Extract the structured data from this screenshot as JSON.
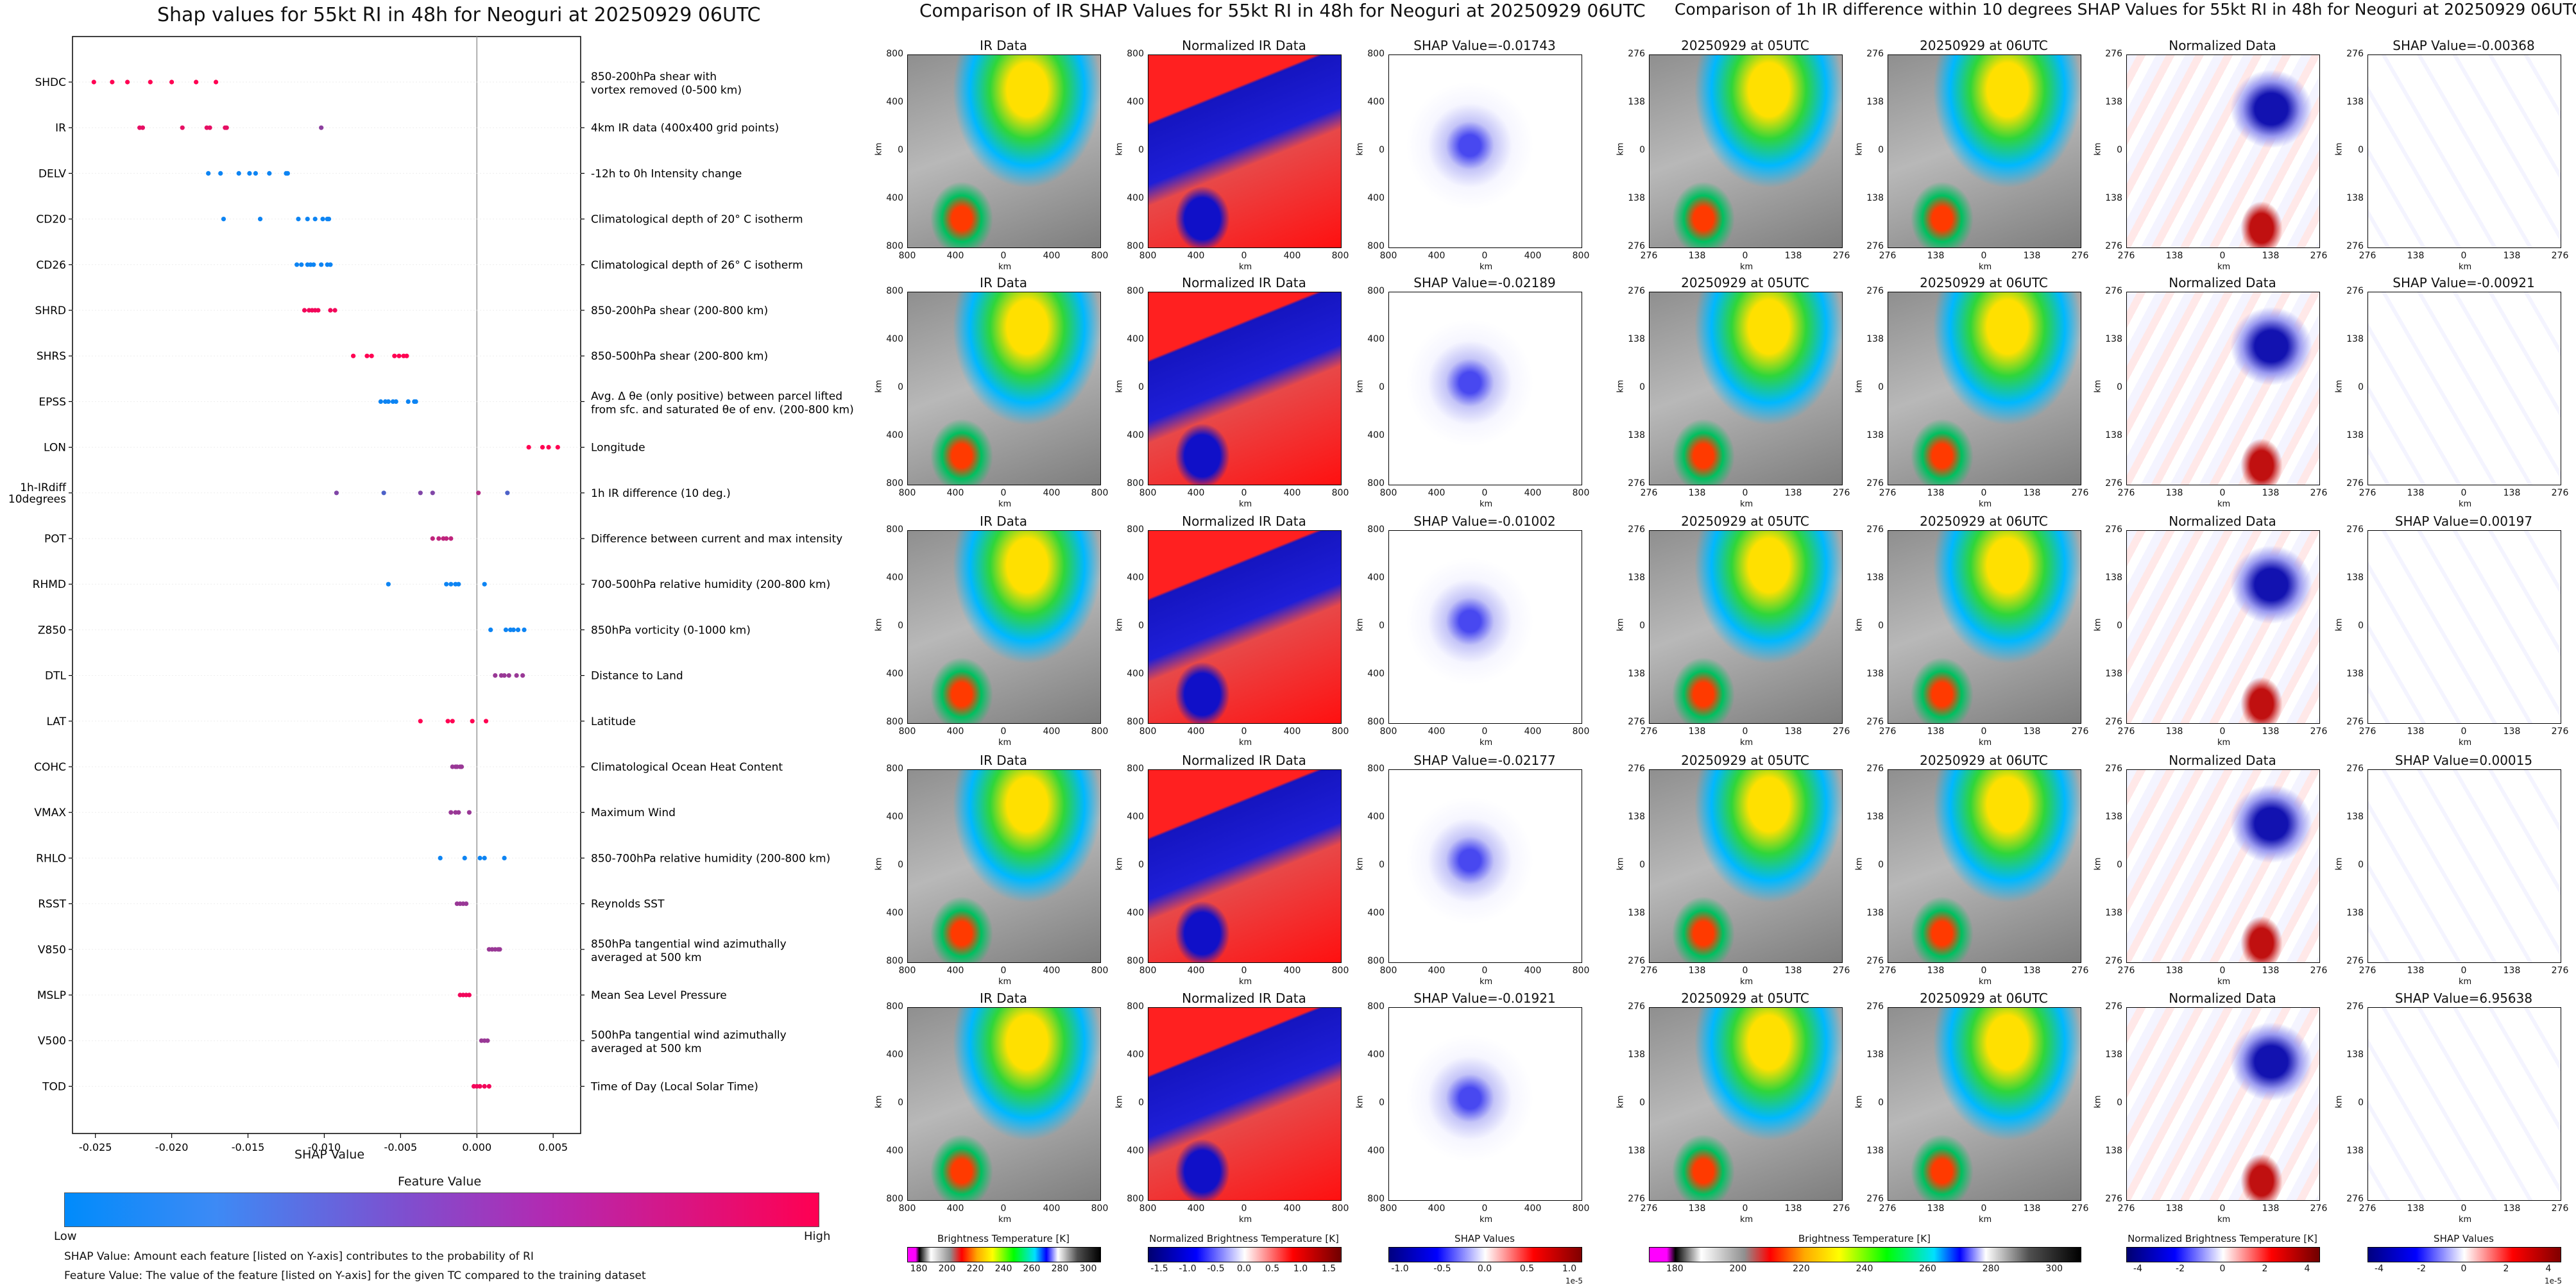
{
  "left_chart": {
    "title": "Shap values for 55kt RI in 48h for Neoguri at 20250929 06UTC",
    "xlabel": "SHAP Value",
    "colorbar_title": "Feature Value",
    "colorbar_low": "Low",
    "colorbar_high": "High",
    "footnote_1": "SHAP Value: Amount each feature [listed on Y-axis] contributes to the probability of RI",
    "footnote_2": "Feature Value: The value of the feature [listed on Y-axis] for the given TC compared to the training dataset",
    "features": [
      {
        "name": "SHDC",
        "desc": "850-200hPa shear with\nvortex removed (0-500 km)"
      },
      {
        "name": "IR",
        "desc": "4km IR data (400x400 grid points)"
      },
      {
        "name": "DELV",
        "desc": "-12h to 0h Intensity change"
      },
      {
        "name": "CD20",
        "desc": "Climatological depth of 20° C isotherm"
      },
      {
        "name": "CD26",
        "desc": "Climatological depth of 26° C isotherm"
      },
      {
        "name": "SHRD",
        "desc": "850-200hPa shear (200-800 km)"
      },
      {
        "name": "SHRS",
        "desc": "850-500hPa shear (200-800 km)"
      },
      {
        "name": "EPSS",
        "desc": "Avg. Δ θe (only positive) between parcel lifted\nfrom sfc. and saturated θe of env. (200-800 km)"
      },
      {
        "name": "LON",
        "desc": "Longitude"
      },
      {
        "name": "1h-IRdiff\n10degrees",
        "desc": "1h IR difference (10 deg.)"
      },
      {
        "name": "POT",
        "desc": "Difference between current and max intensity"
      },
      {
        "name": "RHMD",
        "desc": "700-500hPa relative humidity (200-800 km)"
      },
      {
        "name": "Z850",
        "desc": "850hPa vorticity (0-1000 km)"
      },
      {
        "name": "DTL",
        "desc": "Distance to Land"
      },
      {
        "name": "LAT",
        "desc": "Latitude"
      },
      {
        "name": "COHC",
        "desc": "Climatological Ocean Heat Content"
      },
      {
        "name": "VMAX",
        "desc": "Maximum Wind"
      },
      {
        "name": "RHLO",
        "desc": "850-700hPa relative humidity (200-800 km)"
      },
      {
        "name": "RSST",
        "desc": "Reynolds SST"
      },
      {
        "name": "V850",
        "desc": "850hPa tangential wind azimuthally\naveraged at 500 km"
      },
      {
        "name": "MSLP",
        "desc": "Mean Sea Level Pressure"
      },
      {
        "name": "V500",
        "desc": "500hPa tangential wind azimuthally\naveraged at 500 km"
      },
      {
        "name": "TOD",
        "desc": "Time of Day (Local Solar Time)"
      }
    ]
  },
  "chart_data": {
    "type": "scatter",
    "title": "Shap values for 55kt RI in 48h for Neoguri at 20250929 06UTC",
    "xlabel": "SHAP Value",
    "xlim": [
      -0.0265,
      0.0068
    ],
    "xticks": [
      -0.025,
      -0.02,
      -0.015,
      -0.01,
      -0.005,
      0.0,
      0.005
    ],
    "xtick_labels": [
      "-0.025",
      "-0.020",
      "-0.015",
      "-0.010",
      "-0.005",
      "0.000",
      "0.005"
    ],
    "series": [
      {
        "name": "SHDC",
        "values": [
          -0.0251,
          -0.0239,
          -0.0229,
          -0.0214,
          -0.02,
          -0.0184,
          -0.0171
        ],
        "feature_values": [
          1,
          1,
          1,
          1,
          1,
          1,
          1
        ]
      },
      {
        "name": "IR",
        "values": [
          -0.0221,
          -0.0219,
          -0.0193,
          -0.0177,
          -0.0175,
          -0.0165,
          -0.0164,
          -0.0102
        ],
        "feature_values": [
          0.9,
          0.9,
          0.9,
          0.9,
          0.9,
          0.9,
          0.9,
          0.55
        ]
      },
      {
        "name": "DELV",
        "values": [
          -0.0176,
          -0.0168,
          -0.0156,
          -0.0149,
          -0.0145,
          -0.0136,
          -0.0125,
          -0.0124
        ],
        "feature_values": [
          0.05,
          0.05,
          0.05,
          0.05,
          0.05,
          0.05,
          0.05,
          0.05
        ]
      },
      {
        "name": "CD20",
        "values": [
          -0.0166,
          -0.0142,
          -0.0117,
          -0.0111,
          -0.0106,
          -0.0101,
          -0.0098,
          -0.0097
        ],
        "feature_values": [
          0.05,
          0.05,
          0.05,
          0.05,
          0.05,
          0.05,
          0.05,
          0.05
        ]
      },
      {
        "name": "CD26",
        "values": [
          -0.0118,
          -0.0115,
          -0.0111,
          -0.0109,
          -0.0107,
          -0.0102,
          -0.0098,
          -0.0096
        ],
        "feature_values": [
          0.05,
          0.05,
          0.05,
          0.05,
          0.05,
          0.05,
          0.05,
          0.05
        ]
      },
      {
        "name": "SHRD",
        "values": [
          -0.0113,
          -0.011,
          -0.0108,
          -0.0106,
          -0.0104,
          -0.0096,
          -0.0093
        ],
        "feature_values": [
          0.95,
          0.95,
          0.95,
          0.95,
          0.95,
          0.95,
          0.95
        ]
      },
      {
        "name": "SHRS",
        "values": [
          -0.0081,
          -0.0072,
          -0.0069,
          -0.0054,
          -0.0051,
          -0.0048,
          -0.0046
        ],
        "feature_values": [
          1,
          1,
          1,
          1,
          1,
          1,
          1
        ]
      },
      {
        "name": "EPSS",
        "values": [
          -0.0063,
          -0.006,
          -0.0058,
          -0.0055,
          -0.0053,
          -0.0045,
          -0.0041,
          -0.004
        ],
        "feature_values": [
          0.05,
          0.05,
          0.05,
          0.05,
          0.05,
          0.05,
          0.05,
          0.05
        ]
      },
      {
        "name": "LON",
        "values": [
          0.0034,
          0.0043,
          0.0047,
          0.0053
        ],
        "feature_values": [
          1,
          1,
          1,
          1
        ]
      },
      {
        "name": "1h-IRdiff 10degrees",
        "values": [
          -0.0092,
          -0.0061,
          -0.0037,
          -0.0029,
          0.0001,
          0.002
        ],
        "feature_values": [
          0.5,
          0.3,
          0.5,
          0.5,
          0.7,
          0.3
        ]
      },
      {
        "name": "POT",
        "values": [
          -0.0029,
          -0.0025,
          -0.0022,
          -0.002,
          -0.0017
        ],
        "feature_values": [
          0.75,
          0.75,
          0.75,
          0.75,
          0.75
        ]
      },
      {
        "name": "RHMD",
        "values": [
          -0.0058,
          -0.002,
          -0.0017,
          -0.0014,
          -0.0012,
          0.0005
        ],
        "feature_values": [
          0.05,
          0.05,
          0.05,
          0.05,
          0.05,
          0.05
        ]
      },
      {
        "name": "Z850",
        "values": [
          0.0009,
          0.0019,
          0.0022,
          0.0024,
          0.0027,
          0.0031
        ],
        "feature_values": [
          0.05,
          0.05,
          0.05,
          0.05,
          0.05,
          0.05
        ]
      },
      {
        "name": "DTL",
        "values": [
          0.0012,
          0.0016,
          0.0018,
          0.0021,
          0.0026,
          0.003
        ],
        "feature_values": [
          0.6,
          0.6,
          0.6,
          0.6,
          0.6,
          0.6
        ]
      },
      {
        "name": "LAT",
        "values": [
          -0.0037,
          -0.0019,
          -0.0016,
          -0.0003,
          0.0006
        ],
        "feature_values": [
          1,
          1,
          1,
          1,
          1
        ]
      },
      {
        "name": "COHC",
        "values": [
          -0.0016,
          -0.0014,
          -0.0013,
          -0.0011,
          -0.001
        ],
        "feature_values": [
          0.6,
          0.6,
          0.6,
          0.6,
          0.6
        ]
      },
      {
        "name": "VMAX",
        "values": [
          -0.0017,
          -0.0014,
          -0.0012,
          -0.0005
        ],
        "feature_values": [
          0.6,
          0.6,
          0.6,
          0.6
        ]
      },
      {
        "name": "RHLO",
        "values": [
          -0.0024,
          -0.0008,
          0.0002,
          0.0005,
          0.0018
        ],
        "feature_values": [
          0.05,
          0.05,
          0.05,
          0.05,
          0.05
        ]
      },
      {
        "name": "RSST",
        "values": [
          -0.0013,
          -0.0011,
          -0.0009,
          -0.0007
        ],
        "feature_values": [
          0.6,
          0.6,
          0.6,
          0.6
        ]
      },
      {
        "name": "V850",
        "values": [
          0.0008,
          0.001,
          0.0012,
          0.0014,
          0.0015
        ],
        "feature_values": [
          0.6,
          0.6,
          0.6,
          0.6,
          0.6
        ]
      },
      {
        "name": "MSLP",
        "values": [
          -0.0011,
          -0.0009,
          -0.0007,
          -0.0005
        ],
        "feature_values": [
          0.95,
          0.95,
          0.95,
          0.95
        ]
      },
      {
        "name": "V500",
        "values": [
          0.0003,
          0.0005,
          0.0007
        ],
        "feature_values": [
          0.6,
          0.6,
          0.6
        ]
      },
      {
        "name": "TOD",
        "values": [
          -0.0002,
          0.0,
          0.0002,
          0.0005,
          0.0008
        ],
        "feature_values": [
          0.95,
          0.95,
          0.95,
          0.95,
          0.95
        ]
      }
    ],
    "colormap": {
      "low": "#008bfb",
      "high": "#ff0052"
    },
    "legend": "bottom (Feature Value colorbar, Low to High)"
  },
  "middle": {
    "title": "Comparison of IR SHAP Values for 55kt RI in 48h for Neoguri at 20250929 06UTC",
    "col_titles": [
      "IR Data",
      "Normalized IR Data"
    ],
    "shap_titles": [
      "SHAP Value=-0.01743",
      "SHAP Value=-0.02189",
      "SHAP Value=-0.01002",
      "SHAP Value=-0.02177",
      "SHAP Value=-0.01921"
    ],
    "ticks": [
      "800",
      "400",
      "0",
      "400",
      "800"
    ],
    "axis_label": "km",
    "colorbars": [
      {
        "label": "Brightness Temperature [K]",
        "ticks": [
          "180",
          "200",
          "220",
          "240",
          "260",
          "280",
          "300"
        ],
        "offset": ""
      },
      {
        "label": "Normalized Brightness Temperature [K]",
        "ticks": [
          "-1.5",
          "-1.0",
          "-0.5",
          "0.0",
          "0.5",
          "1.0",
          "1.5"
        ],
        "offset": ""
      },
      {
        "label": "SHAP Values",
        "ticks": [
          "-1.0",
          "-0.5",
          "0.0",
          "0.5",
          "1.0"
        ],
        "offset": "1e-5"
      }
    ]
  },
  "right": {
    "title": "Comparison of 1h IR difference within 10 degrees SHAP Values for 55kt RI in 48h for Neoguri at 20250929 06UTC",
    "col_titles": [
      "20250929 at 05UTC",
      "20250929 at 06UTC",
      "Normalized Data"
    ],
    "shap_titles": [
      "SHAP Value=-0.00368",
      "SHAP Value=-0.00921",
      "SHAP Value=0.00197",
      "SHAP Value=0.00015",
      "SHAP Value=6.95638"
    ],
    "ticks": [
      "276",
      "138",
      "0",
      "138",
      "276"
    ],
    "axis_label": "km",
    "colorbars": [
      {
        "label": "Brightness Temperature [K]",
        "ticks": [
          "180",
          "200",
          "220",
          "240",
          "260",
          "280",
          "300"
        ],
        "offset": ""
      },
      {
        "label": "Normalized Brightness Temperature [K]",
        "ticks": [
          "-4",
          "-2",
          "0",
          "2",
          "4"
        ],
        "offset": ""
      },
      {
        "label": "SHAP Values",
        "ticks": [
          "-4",
          "-2",
          "0",
          "2",
          "4"
        ],
        "offset": "1e-5"
      }
    ]
  },
  "colors": {
    "low": "#008bfb",
    "high": "#ff0052"
  }
}
